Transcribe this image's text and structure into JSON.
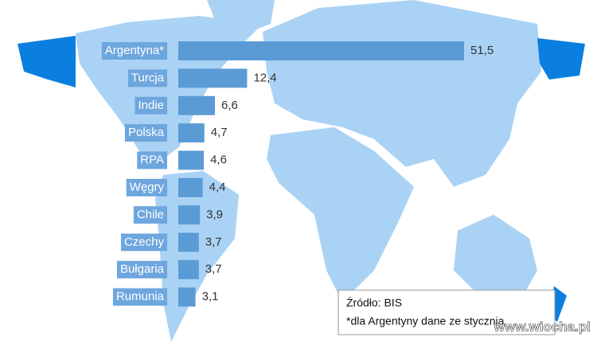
{
  "chart_data": {
    "type": "bar",
    "orientation": "horizontal",
    "categories": [
      "Argentyna*",
      "Turcja",
      "Indie",
      "Polska",
      "RPA",
      "Węgry",
      "Chile",
      "Czechy",
      "Bułgaria",
      "Rumunia"
    ],
    "values": [
      51.5,
      12.4,
      6.6,
      4.7,
      4.6,
      4.4,
      3.9,
      3.7,
      3.7,
      3.1
    ],
    "value_labels": [
      "51,5",
      "12,4",
      "6,6",
      "4,7",
      "4,6",
      "4,4",
      "3,9",
      "3,7",
      "3,7",
      "3,1"
    ],
    "color": "#5b9bd5",
    "annotations": [
      "Źródło: BIS",
      "*dla Argentyny dane ze stycznia"
    ]
  },
  "watermark": "www.wiocha.pl"
}
